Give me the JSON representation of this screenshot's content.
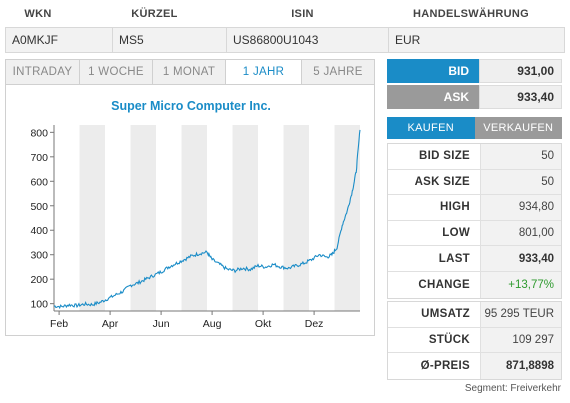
{
  "header": {
    "columns": [
      "WKN",
      "KÜRZEL",
      "ISIN",
      "HANDELSWÄHRUNG"
    ],
    "values": [
      "A0MKJF",
      "MS5",
      "US86800U1043",
      "EUR"
    ]
  },
  "tabs": [
    {
      "label": "INTRADAY",
      "active": false
    },
    {
      "label": "1 WOCHE",
      "active": false
    },
    {
      "label": "1 MONAT",
      "active": false
    },
    {
      "label": "1 JAHR",
      "active": true
    },
    {
      "label": "5 JAHRE",
      "active": false
    }
  ],
  "quote": {
    "bid_label": "BID",
    "bid_value": "931,00",
    "ask_label": "ASK",
    "ask_value": "933,40"
  },
  "trade": {
    "buy_label": "KAUFEN",
    "sell_label": "VERKAUFEN"
  },
  "stats": [
    {
      "label": "BID SIZE",
      "value": "50",
      "style": ""
    },
    {
      "label": "ASK SIZE",
      "value": "50",
      "style": ""
    },
    {
      "label": "HIGH",
      "value": "934,80",
      "style": ""
    },
    {
      "label": "LOW",
      "value": "801,00",
      "style": ""
    },
    {
      "label": "LAST",
      "value": "933,40",
      "style": "bold"
    },
    {
      "label": "CHANGE",
      "value": "+13,77%",
      "style": "green"
    }
  ],
  "volume": [
    {
      "label": "UMSATZ",
      "value": "95 295 TEUR"
    },
    {
      "label": "STÜCK",
      "value": "109 297"
    },
    {
      "label": "Ø-PREIS",
      "value": "871,8898",
      "style": "bold"
    }
  ],
  "segment": "Segment: Freiverkehr",
  "colors": {
    "accent": "#1a8cc7",
    "ask_gray": "#9a9a9a",
    "positive": "#2e9a2e"
  },
  "chart_data": {
    "type": "line",
    "title": "Super Micro Computer Inc.",
    "xlabel": "",
    "ylabel": "",
    "x_ticks": [
      "Feb",
      "Apr",
      "Jun",
      "Aug",
      "Okt",
      "Dez"
    ],
    "y_ticks": [
      100,
      200,
      300,
      400,
      500,
      600,
      700,
      800
    ],
    "ylim": [
      70,
      830
    ],
    "xlim": [
      0,
      12
    ],
    "grid": "alternating vertical bands",
    "series": [
      {
        "name": "",
        "x": [
          0,
          0.3,
          0.6,
          0.9,
          1.2,
          1.5,
          1.8,
          2.1,
          2.4,
          2.7,
          3.0,
          3.3,
          3.6,
          3.9,
          4.2,
          4.5,
          4.8,
          5.1,
          5.4,
          5.7,
          6.0,
          6.2,
          6.5,
          6.8,
          7.1,
          7.4,
          7.7,
          8.0,
          8.3,
          8.6,
          8.9,
          9.2,
          9.5,
          9.8,
          10.1,
          10.4,
          10.7,
          10.9,
          11.1,
          11.3,
          11.5,
          11.7,
          11.85,
          12.0
        ],
        "y": [
          90,
          88,
          95,
          92,
          98,
          96,
          105,
          120,
          135,
          150,
          175,
          185,
          200,
          215,
          230,
          250,
          265,
          280,
          295,
          305,
          310,
          280,
          260,
          240,
          235,
          245,
          240,
          255,
          250,
          260,
          250,
          245,
          255,
          265,
          280,
          300,
          290,
          300,
          330,
          420,
          480,
          560,
          640,
          810
        ]
      }
    ]
  }
}
